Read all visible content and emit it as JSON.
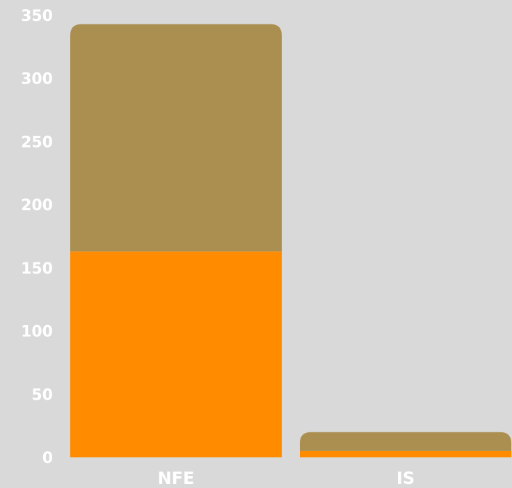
{
  "chart_data": {
    "type": "bar",
    "stacked": true,
    "categories": [
      "NFE",
      "IS"
    ],
    "series": [
      {
        "values": [
          163,
          5
        ],
        "color": "#ff8c00"
      },
      {
        "values": [
          180,
          15
        ],
        "color": "#aa8f50"
      }
    ],
    "title": "",
    "xlabel": "",
    "ylabel": "",
    "ylim": [
      0,
      350
    ],
    "yticks": [
      0,
      50,
      100,
      150,
      200,
      250,
      300,
      350
    ],
    "ytick_labels": [
      "0",
      "50",
      "100",
      "150",
      "200",
      "250",
      "300",
      "350"
    ],
    "grid": false,
    "legend": "none",
    "background": "#d9d9d9",
    "label_color": "#ffffff"
  }
}
